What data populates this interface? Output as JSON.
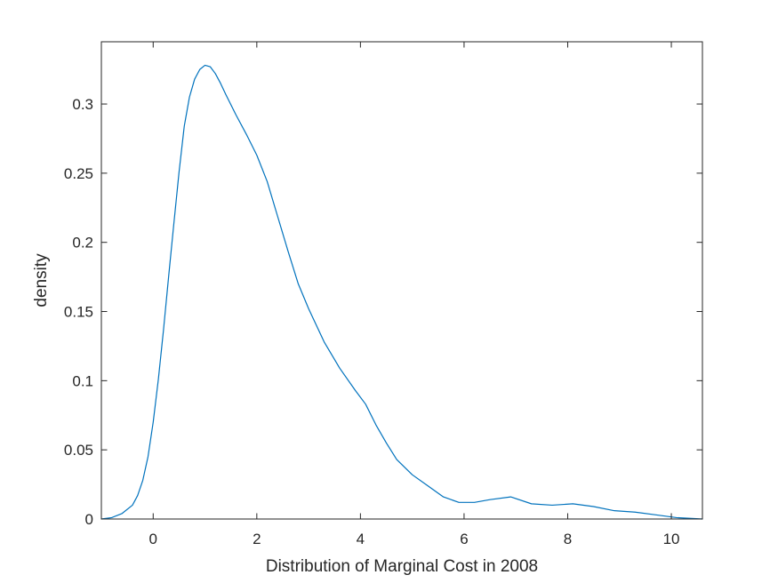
{
  "chart_data": {
    "type": "line",
    "title": "",
    "xlabel": "Distribution of Marginal Cost in 2008",
    "ylabel": "density",
    "xlim": [
      -1,
      10.6
    ],
    "ylim": [
      0,
      0.345
    ],
    "xticks": [
      0,
      2,
      4,
      6,
      8,
      10
    ],
    "xtick_labels": [
      "0",
      "2",
      "4",
      "6",
      "8",
      "10"
    ],
    "yticks": [
      0,
      0.05,
      0.1,
      0.15,
      0.2,
      0.25,
      0.3
    ],
    "ytick_labels": [
      "0",
      "0.05",
      "0.1",
      "0.15",
      "0.2",
      "0.25",
      "0.3"
    ],
    "grid": false,
    "line_color": "#0072bd",
    "axis_color": "#262626",
    "series": [
      {
        "x": [
          -1.0,
          -0.8,
          -0.6,
          -0.4,
          -0.3,
          -0.2,
          -0.1,
          0.0,
          0.1,
          0.2,
          0.3,
          0.4,
          0.5,
          0.6,
          0.7,
          0.8,
          0.9,
          1.0,
          1.1,
          1.2,
          1.3,
          1.4,
          1.6,
          1.8,
          2.0,
          2.2,
          2.4,
          2.6,
          2.8,
          3.0,
          3.3,
          3.6,
          3.9,
          4.1,
          4.3,
          4.5,
          4.7,
          5.0,
          5.3,
          5.6,
          5.9,
          6.2,
          6.5,
          6.9,
          7.3,
          7.7,
          8.1,
          8.5,
          8.9,
          9.3,
          9.7,
          10.1,
          10.6
        ],
        "y": [
          0.0,
          0.001,
          0.004,
          0.01,
          0.017,
          0.028,
          0.045,
          0.07,
          0.101,
          0.137,
          0.176,
          0.214,
          0.251,
          0.284,
          0.305,
          0.318,
          0.325,
          0.328,
          0.327,
          0.322,
          0.315,
          0.307,
          0.292,
          0.278,
          0.263,
          0.244,
          0.219,
          0.194,
          0.17,
          0.152,
          0.128,
          0.109,
          0.093,
          0.083,
          0.068,
          0.055,
          0.043,
          0.032,
          0.024,
          0.016,
          0.012,
          0.012,
          0.014,
          0.016,
          0.011,
          0.01,
          0.011,
          0.009,
          0.006,
          0.005,
          0.003,
          0.001,
          0.0
        ]
      }
    ]
  }
}
